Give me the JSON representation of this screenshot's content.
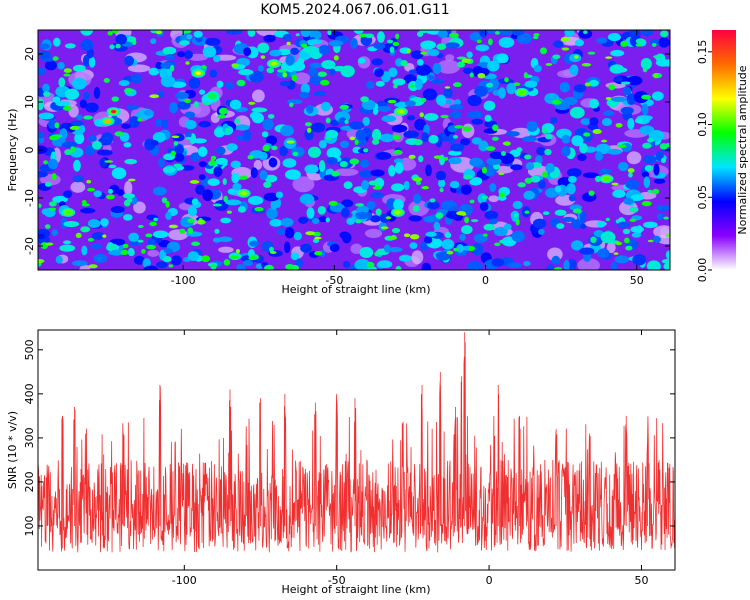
{
  "title": "KOM5.2024.067.06.01.G11",
  "chart_data": [
    {
      "type": "heatmap",
      "xlabel": "Height of straight line (km)",
      "ylabel": "Frequency (Hz)",
      "xlim": [
        -148,
        61
      ],
      "ylim": [
        -25,
        25
      ],
      "xticks": [
        -100,
        -50,
        0,
        50
      ],
      "yticks": [
        -20,
        -10,
        0,
        10,
        20
      ],
      "colorbar": {
        "label": "Normalized spectral amplitude",
        "range": [
          0,
          0.165
        ],
        "ticks": [
          0.0,
          0.05,
          0.1,
          0.15
        ],
        "colormap": [
          "#ffffff",
          "#8a00ff",
          "#0000ff",
          "#00e5ff",
          "#00ff00",
          "#ffff00",
          "#ff6a00",
          "#ff0040"
        ]
      },
      "hotspots": [
        {
          "x": -123,
          "y": 8,
          "value": 0.16
        },
        {
          "x": -125,
          "y": 6,
          "value": 0.13
        },
        {
          "x": -95,
          "y": 16,
          "value": 0.12
        },
        {
          "x": -70,
          "y": 18,
          "value": 0.11
        },
        {
          "x": -28,
          "y": 8,
          "value": 0.11
        },
        {
          "x": 12,
          "y": 12,
          "value": 0.1
        },
        {
          "x": 40,
          "y": -6,
          "value": 0.1
        },
        {
          "x": -80,
          "y": -9,
          "value": 0.11
        },
        {
          "x": -138,
          "y": -13,
          "value": 0.1
        },
        {
          "x": -29,
          "y": -13,
          "value": 0.11
        }
      ]
    },
    {
      "type": "line",
      "xlabel": "Height of straight line (km)",
      "ylabel": "SNR (10 * v/v)",
      "xlim": [
        -148,
        61
      ],
      "ylim": [
        0,
        545
      ],
      "xticks": [
        -100,
        -50,
        0,
        50
      ],
      "yticks": [
        100,
        200,
        300,
        400,
        500
      ],
      "series": [
        {
          "color": "#f03030",
          "baseline_min": 40,
          "typical_max": 250,
          "peaks": [
            {
              "x": -145,
              "y": 220
            },
            {
              "x": -140,
              "y": 350
            },
            {
              "x": -136,
              "y": 370
            },
            {
              "x": -120,
              "y": 310
            },
            {
              "x": -108,
              "y": 420
            },
            {
              "x": -85,
              "y": 410
            },
            {
              "x": -75,
              "y": 390
            },
            {
              "x": -67,
              "y": 400
            },
            {
              "x": -57,
              "y": 380
            },
            {
              "x": -50,
              "y": 400
            },
            {
              "x": -44,
              "y": 390
            },
            {
              "x": -22,
              "y": 420
            },
            {
              "x": -16,
              "y": 450
            },
            {
              "x": -11,
              "y": 370
            },
            {
              "x": -9,
              "y": 440
            },
            {
              "x": -8,
              "y": 540
            },
            {
              "x": 3,
              "y": 420
            },
            {
              "x": 10,
              "y": 350
            },
            {
              "x": 22,
              "y": 320
            },
            {
              "x": 33,
              "y": 310
            },
            {
              "x": 45,
              "y": 350
            },
            {
              "x": 52,
              "y": 300
            },
            {
              "x": 58,
              "y": 200
            }
          ]
        }
      ]
    }
  ]
}
